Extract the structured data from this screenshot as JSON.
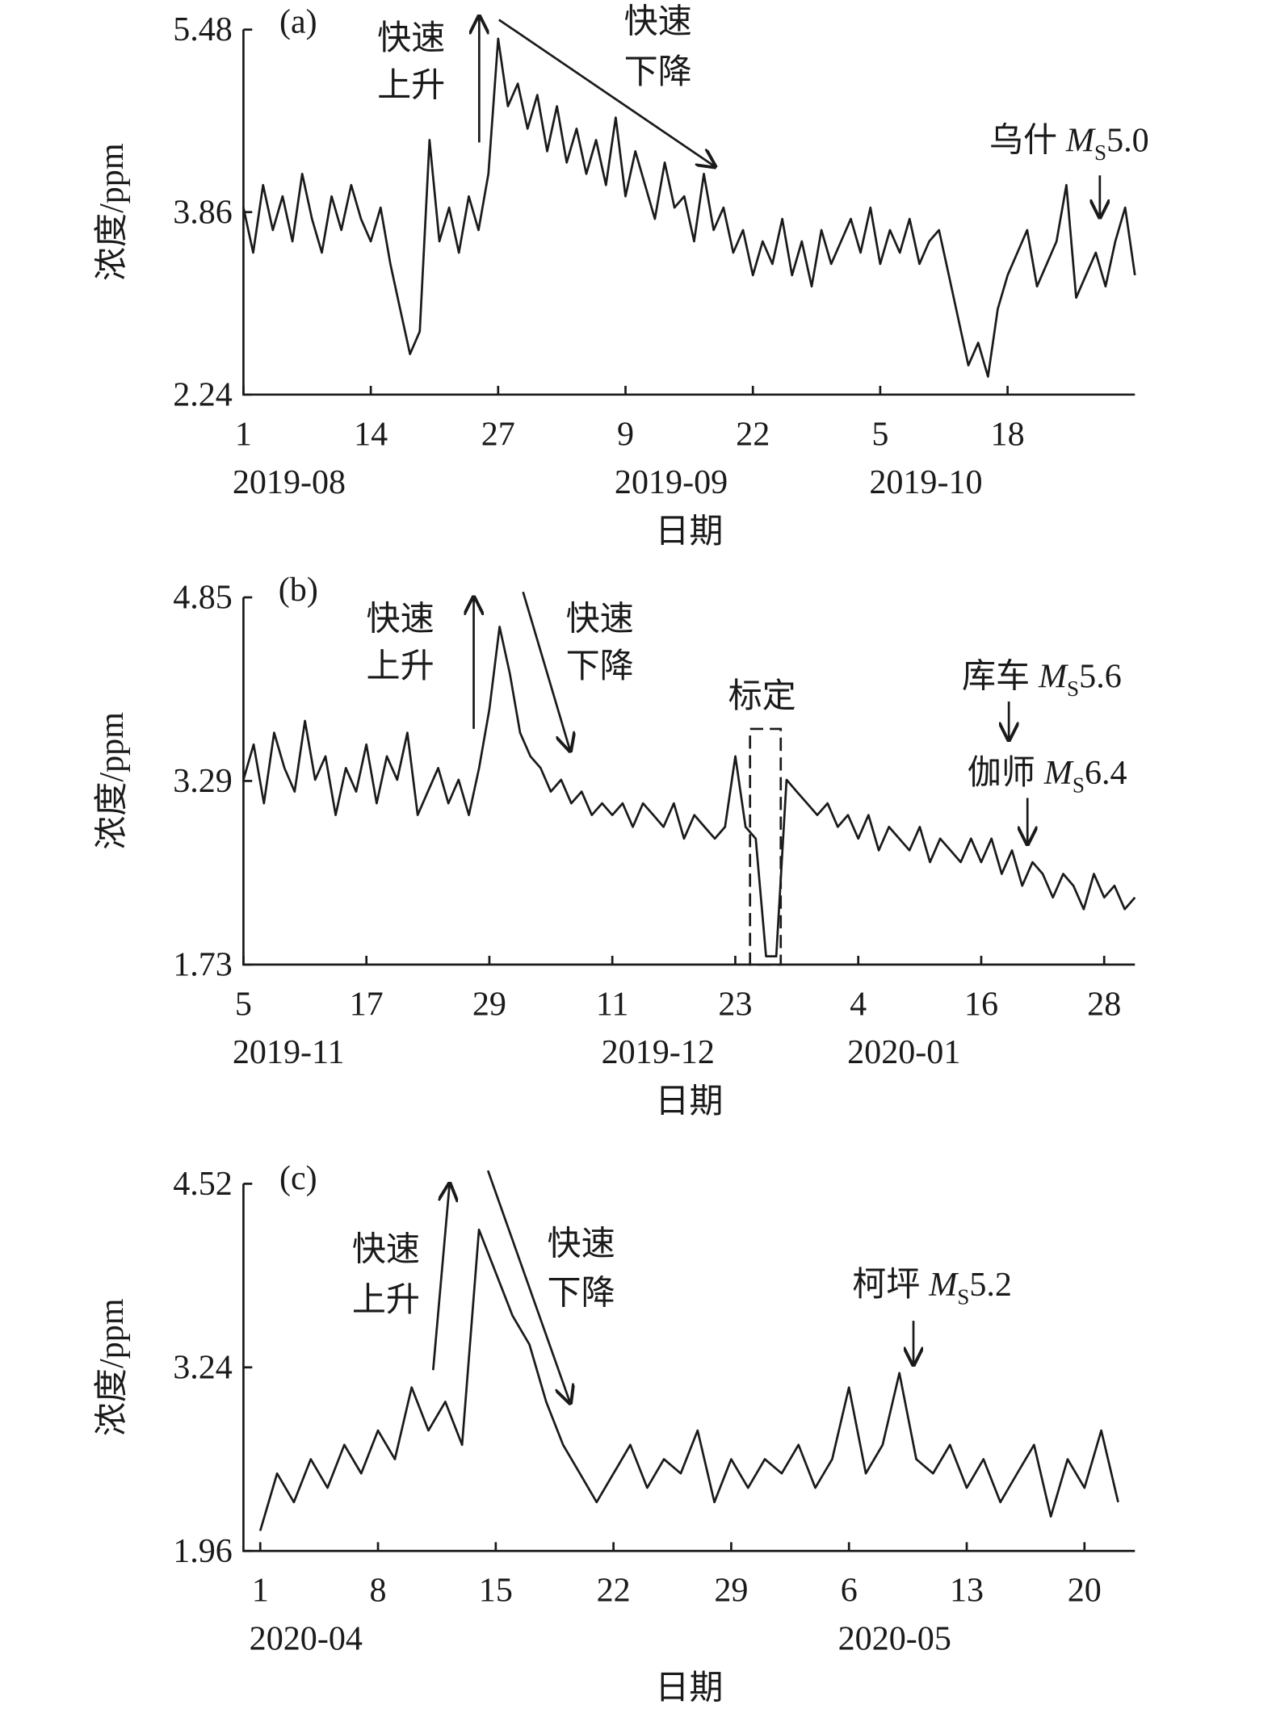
{
  "chart_data": [
    {
      "type": "line",
      "panel_label": "(a)",
      "ylabel": "浓度/ppm",
      "xlabel": "日期",
      "color": "#1a1a1a",
      "x": [
        "2019-08-01",
        "2019-08-02",
        "2019-08-03",
        "2019-08-04",
        "2019-08-05",
        "2019-08-06",
        "2019-08-07",
        "2019-08-08",
        "2019-08-09",
        "2019-08-10",
        "2019-08-11",
        "2019-08-12",
        "2019-08-13",
        "2019-08-14",
        "2019-08-15",
        "2019-08-16",
        "2019-08-17",
        "2019-08-18",
        "2019-08-19",
        "2019-08-20",
        "2019-08-21",
        "2019-08-22",
        "2019-08-23",
        "2019-08-24",
        "2019-08-25",
        "2019-08-26",
        "2019-08-27",
        "2019-08-28",
        "2019-08-29",
        "2019-08-30",
        "2019-08-31",
        "2019-09-01",
        "2019-09-02",
        "2019-09-03",
        "2019-09-04",
        "2019-09-05",
        "2019-09-06",
        "2019-09-07",
        "2019-09-08",
        "2019-09-09",
        "2019-09-10",
        "2019-09-11",
        "2019-09-12",
        "2019-09-13",
        "2019-09-14",
        "2019-09-15",
        "2019-09-16",
        "2019-09-17",
        "2019-09-18",
        "2019-09-19",
        "2019-09-20",
        "2019-09-21",
        "2019-09-22",
        "2019-09-23",
        "2019-09-24",
        "2019-09-25",
        "2019-09-26",
        "2019-09-27",
        "2019-09-28",
        "2019-09-29",
        "2019-09-30",
        "2019-10-01",
        "2019-10-02",
        "2019-10-03",
        "2019-10-04",
        "2019-10-05",
        "2019-10-06",
        "2019-10-07",
        "2019-10-08",
        "2019-10-09",
        "2019-10-10",
        "2019-10-11",
        "2019-10-12",
        "2019-10-13",
        "2019-10-14",
        "2019-10-15",
        "2019-10-16",
        "2019-10-17",
        "2019-10-18",
        "2019-10-19",
        "2019-10-20",
        "2019-10-21",
        "2019-10-22",
        "2019-10-23",
        "2019-10-24",
        "2019-10-25",
        "2019-10-26",
        "2019-10-27",
        "2019-10-28",
        "2019-10-29",
        "2019-10-30",
        "2019-10-31"
      ],
      "values": [
        3.9,
        3.5,
        4.1,
        3.7,
        4.0,
        3.6,
        4.2,
        3.8,
        3.5,
        4.0,
        3.7,
        4.1,
        3.8,
        3.6,
        3.9,
        3.4,
        3.0,
        2.6,
        2.8,
        4.5,
        3.6,
        3.9,
        3.5,
        4.0,
        3.7,
        4.2,
        5.4,
        4.8,
        5.0,
        4.6,
        4.9,
        4.4,
        4.8,
        4.3,
        4.6,
        4.2,
        4.5,
        4.1,
        4.7,
        4.0,
        4.4,
        4.1,
        3.8,
        4.3,
        3.9,
        4.0,
        3.6,
        4.2,
        3.7,
        3.9,
        3.5,
        3.7,
        3.3,
        3.6,
        3.4,
        3.8,
        3.3,
        3.6,
        3.2,
        3.7,
        3.4,
        3.6,
        3.8,
        3.5,
        3.9,
        3.4,
        3.7,
        3.5,
        3.8,
        3.4,
        3.6,
        3.7,
        3.3,
        2.9,
        2.5,
        2.7,
        2.4,
        3.0,
        3.3,
        3.5,
        3.7,
        3.2,
        3.4,
        3.6,
        4.1,
        3.1,
        3.3,
        3.5,
        3.2,
        3.6,
        3.9,
        3.3
      ],
      "xlim": [
        "2019-08-01",
        "2019-10-31"
      ],
      "xticks": [
        {
          "value": "2019-08-01",
          "label": "1"
        },
        {
          "value": "2019-08-14",
          "label": "14"
        },
        {
          "value": "2019-08-27",
          "label": "27"
        },
        {
          "value": "2019-09-09",
          "label": "9"
        },
        {
          "value": "2019-09-22",
          "label": "22"
        },
        {
          "value": "2019-10-05",
          "label": "5"
        },
        {
          "value": "2019-10-18",
          "label": "18"
        }
      ],
      "month_labels": [
        {
          "value": "2019-08-01",
          "label": "2019-08"
        },
        {
          "value": "2019-09-09",
          "label": "2019-09"
        },
        {
          "value": "2019-10-05",
          "label": "2019-10"
        }
      ],
      "ylim": [
        2.24,
        5.48
      ],
      "yticks": [
        2.24,
        3.86,
        5.48
      ],
      "annotations": [
        {
          "lines": [
            "快速",
            "上升"
          ]
        },
        {
          "lines": [
            "快速",
            "下降"
          ]
        }
      ],
      "events": [
        {
          "place": "乌什",
          "m": "M",
          "s": "S",
          "magnitude": "5.0"
        }
      ]
    },
    {
      "type": "line",
      "panel_label": "(b)",
      "ylabel": "浓度/ppm",
      "xlabel": "日期",
      "color": "#1a1a1a",
      "x": [
        "2019-11-05",
        "2019-11-06",
        "2019-11-07",
        "2019-11-08",
        "2019-11-09",
        "2019-11-10",
        "2019-11-11",
        "2019-11-12",
        "2019-11-13",
        "2019-11-14",
        "2019-11-15",
        "2019-11-16",
        "2019-11-17",
        "2019-11-18",
        "2019-11-19",
        "2019-11-20",
        "2019-11-21",
        "2019-11-22",
        "2019-11-23",
        "2019-11-24",
        "2019-11-25",
        "2019-11-26",
        "2019-11-27",
        "2019-11-28",
        "2019-11-29",
        "2019-11-30",
        "2019-12-01",
        "2019-12-02",
        "2019-12-03",
        "2019-12-04",
        "2019-12-05",
        "2019-12-06",
        "2019-12-07",
        "2019-12-08",
        "2019-12-09",
        "2019-12-10",
        "2019-12-11",
        "2019-12-12",
        "2019-12-13",
        "2019-12-14",
        "2019-12-15",
        "2019-12-16",
        "2019-12-17",
        "2019-12-18",
        "2019-12-19",
        "2019-12-20",
        "2019-12-21",
        "2019-12-22",
        "2019-12-23",
        "2019-12-24",
        "2019-12-25",
        "2019-12-26",
        "2019-12-27",
        "2019-12-28",
        "2019-12-29",
        "2019-12-30",
        "2019-12-31",
        "2020-01-01",
        "2020-01-02",
        "2020-01-03",
        "2020-01-04",
        "2020-01-05",
        "2020-01-06",
        "2020-01-07",
        "2020-01-08",
        "2020-01-09",
        "2020-01-10",
        "2020-01-11",
        "2020-01-12",
        "2020-01-13",
        "2020-01-14",
        "2020-01-15",
        "2020-01-16",
        "2020-01-17",
        "2020-01-18",
        "2020-01-19",
        "2020-01-20",
        "2020-01-21",
        "2020-01-22",
        "2020-01-23",
        "2020-01-24",
        "2020-01-25",
        "2020-01-26",
        "2020-01-27",
        "2020-01-28",
        "2020-01-29",
        "2020-01-30",
        "2020-01-31"
      ],
      "values": [
        3.3,
        3.6,
        3.1,
        3.7,
        3.4,
        3.2,
        3.8,
        3.3,
        3.5,
        3.0,
        3.4,
        3.2,
        3.6,
        3.1,
        3.5,
        3.3,
        3.7,
        3.0,
        3.2,
        3.4,
        3.1,
        3.3,
        3.0,
        3.4,
        3.9,
        4.6,
        4.2,
        3.7,
        3.5,
        3.4,
        3.2,
        3.3,
        3.1,
        3.2,
        3.0,
        3.1,
        3.0,
        3.1,
        2.9,
        3.1,
        3.0,
        2.9,
        3.1,
        2.8,
        3.0,
        2.9,
        2.8,
        2.9,
        3.5,
        2.9,
        2.8,
        1.8,
        1.8,
        3.3,
        3.2,
        3.1,
        3.0,
        3.1,
        2.9,
        3.0,
        2.8,
        3.0,
        2.7,
        2.9,
        2.8,
        2.7,
        2.9,
        2.6,
        2.8,
        2.7,
        2.6,
        2.8,
        2.6,
        2.8,
        2.5,
        2.7,
        2.4,
        2.6,
        2.5,
        2.3,
        2.5,
        2.4,
        2.2,
        2.5,
        2.3,
        2.4,
        2.2,
        2.3
      ],
      "xlim": [
        "2019-11-05",
        "2020-01-31"
      ],
      "xticks": [
        {
          "value": "2019-11-05",
          "label": "5"
        },
        {
          "value": "2019-11-17",
          "label": "17"
        },
        {
          "value": "2019-11-29",
          "label": "29"
        },
        {
          "value": "2019-12-11",
          "label": "11"
        },
        {
          "value": "2019-12-23",
          "label": "23"
        },
        {
          "value": "2020-01-04",
          "label": "4"
        },
        {
          "value": "2020-01-16",
          "label": "16"
        },
        {
          "value": "2020-01-28",
          "label": "28"
        }
      ],
      "month_labels": [
        {
          "value": "2019-11-05",
          "label": "2019-11"
        },
        {
          "value": "2019-12-11",
          "label": "2019-12"
        },
        {
          "value": "2020-01-04",
          "label": "2020-01"
        }
      ],
      "ylim": [
        1.73,
        4.85
      ],
      "yticks": [
        1.73,
        3.29,
        4.85
      ],
      "annotations": [
        {
          "lines": [
            "快速",
            "上升"
          ]
        },
        {
          "lines": [
            "快速",
            "下降"
          ]
        },
        {
          "lines": [
            "标定"
          ]
        }
      ],
      "events": [
        {
          "place": "库车",
          "m": "M",
          "s": "S",
          "magnitude": "5.6"
        },
        {
          "place": "伽师",
          "m": "M",
          "s": "S",
          "magnitude": "6.4"
        }
      ]
    },
    {
      "type": "line",
      "panel_label": "(c)",
      "ylabel": "浓度/ppm",
      "xlabel": "日期",
      "color": "#1a1a1a",
      "x": [
        "2020-04-01",
        "2020-04-02",
        "2020-04-03",
        "2020-04-04",
        "2020-04-05",
        "2020-04-06",
        "2020-04-07",
        "2020-04-08",
        "2020-04-09",
        "2020-04-10",
        "2020-04-11",
        "2020-04-12",
        "2020-04-13",
        "2020-04-14",
        "2020-04-15",
        "2020-04-16",
        "2020-04-17",
        "2020-04-18",
        "2020-04-19",
        "2020-04-20",
        "2020-04-21",
        "2020-04-22",
        "2020-04-23",
        "2020-04-24",
        "2020-04-25",
        "2020-04-26",
        "2020-04-27",
        "2020-04-28",
        "2020-04-29",
        "2020-04-30",
        "2020-05-01",
        "2020-05-02",
        "2020-05-03",
        "2020-05-04",
        "2020-05-05",
        "2020-05-06",
        "2020-05-07",
        "2020-05-08",
        "2020-05-09",
        "2020-05-10",
        "2020-05-11",
        "2020-05-12",
        "2020-05-13",
        "2020-05-14",
        "2020-05-15",
        "2020-05-16",
        "2020-05-17",
        "2020-05-18",
        "2020-05-19",
        "2020-05-20",
        "2020-05-21",
        "2020-05-22"
      ],
      "values": [
        2.1,
        2.5,
        2.3,
        2.6,
        2.4,
        2.7,
        2.5,
        2.8,
        2.6,
        3.1,
        2.8,
        3.0,
        2.7,
        4.2,
        3.9,
        3.6,
        3.4,
        3.0,
        2.7,
        2.5,
        2.3,
        2.5,
        2.7,
        2.4,
        2.6,
        2.5,
        2.8,
        2.3,
        2.6,
        2.4,
        2.6,
        2.5,
        2.7,
        2.4,
        2.6,
        3.1,
        2.5,
        2.7,
        3.2,
        2.6,
        2.5,
        2.7,
        2.4,
        2.6,
        2.3,
        2.5,
        2.7,
        2.2,
        2.6,
        2.4,
        2.8,
        2.3
      ],
      "xlim": [
        "2020-03-31",
        "2020-05-23"
      ],
      "xticks": [
        {
          "value": "2020-04-01",
          "label": "1"
        },
        {
          "value": "2020-04-08",
          "label": "8"
        },
        {
          "value": "2020-04-15",
          "label": "15"
        },
        {
          "value": "2020-04-22",
          "label": "22"
        },
        {
          "value": "2020-04-29",
          "label": "29"
        },
        {
          "value": "2020-05-06",
          "label": "6"
        },
        {
          "value": "2020-05-13",
          "label": "13"
        },
        {
          "value": "2020-05-20",
          "label": "20"
        }
      ],
      "month_labels": [
        {
          "value": "2020-04-01",
          "label": "2020-04"
        },
        {
          "value": "2020-05-06",
          "label": "2020-05"
        }
      ],
      "ylim": [
        1.96,
        4.52
      ],
      "yticks": [
        1.96,
        3.24,
        4.52
      ],
      "annotations": [
        {
          "lines": [
            "快速",
            "上升"
          ]
        },
        {
          "lines": [
            "快速",
            "下降"
          ]
        }
      ],
      "events": [
        {
          "place": "柯坪",
          "m": "M",
          "s": "S",
          "magnitude": "5.2"
        }
      ]
    }
  ]
}
